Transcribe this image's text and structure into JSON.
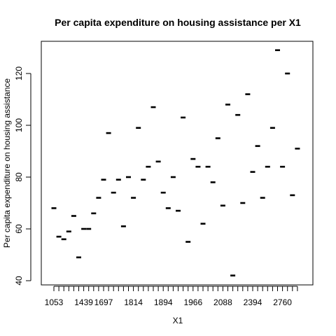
{
  "chart_data": {
    "type": "bar",
    "title": "Per capita expenditure on housing assistance per X1",
    "xlabel": "X1",
    "ylabel": "Per capita expenditure on housing assistance",
    "ylim": [
      40,
      132
    ],
    "y_ticks": [
      40,
      60,
      80,
      100,
      120
    ],
    "x_tick_labels": [
      "1053",
      "1439",
      "1697",
      "1814",
      "1894",
      "1966",
      "2088",
      "2394",
      "2760"
    ],
    "x_tick_label_positions": [
      1,
      7,
      11,
      17,
      23,
      29,
      35,
      41,
      47
    ],
    "box_plot": true,
    "grid": false,
    "values": [
      68,
      57,
      56,
      59,
      65,
      49,
      60,
      60,
      66,
      72,
      79,
      97,
      74,
      79,
      61,
      80,
      72,
      99,
      79,
      84,
      107,
      86,
      74,
      68,
      80,
      67,
      103,
      55,
      87,
      84,
      62,
      84,
      78,
      95,
      69,
      108,
      42,
      104,
      70,
      112,
      82,
      92,
      72,
      84,
      99,
      129,
      84,
      120,
      73,
      91
    ]
  }
}
